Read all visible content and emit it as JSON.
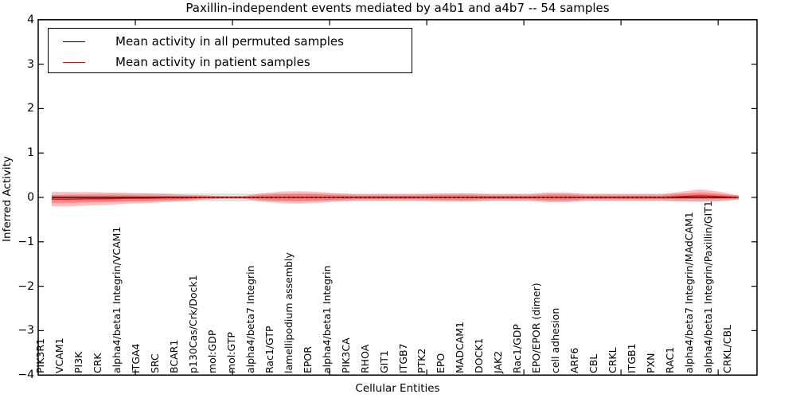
{
  "title": "Paxillin-independent events mediated by a4b1 and a4b7 -- 54 samples",
  "axes": {
    "ylabel": "Inferred Activity",
    "xlabel": "Cellular Entities",
    "ylim": [
      -4,
      4
    ],
    "ytick_values": [
      4,
      3,
      2,
      1,
      0,
      -1,
      -2,
      -3,
      -4
    ],
    "ytick_labels": [
      "4",
      "3",
      "2",
      "1",
      "0",
      "−1",
      "−2",
      "−3",
      "−4"
    ],
    "xlim": [
      0,
      37
    ],
    "xtick_values": [
      5,
      10,
      15,
      20,
      25,
      30,
      35
    ]
  },
  "legend": {
    "items": [
      {
        "label": "Mean activity in all permuted samples",
        "color": "#000000"
      },
      {
        "label": "Mean activity in patient samples",
        "color": "#ff0000"
      }
    ]
  },
  "chart_data": {
    "type": "line",
    "title": "Paxillin-independent events mediated by a4b1 and a4b7 -- 54 samples",
    "xlabel": "Cellular Entities",
    "ylabel": "Inferred Activity",
    "ylim": [
      -4,
      4
    ],
    "grid": false,
    "legend_position": "upper left",
    "categories": [
      "PIK3R1",
      "VCAM1",
      "PI3K",
      "CRK",
      "alpha4/beta1 Integrin/VCAM1",
      "ITGA4",
      "SRC",
      "BCAR1",
      "p130Cas/Crk/Dock1",
      "mol:GDP",
      "mol:GTP",
      "alpha4/beta7 Integrin",
      "Rac1/GTP",
      "lamellipodium assembly",
      "EPOR",
      "alpha4/beta1 Integrin",
      "PIK3CA",
      "RHOA",
      "GIT1",
      "ITGB7",
      "PTK2",
      "EPO",
      "MADCAM1",
      "DOCK1",
      "JAK2",
      "Rac1/GDP",
      "EPO/EPOR (dimer)",
      "cell adhesion",
      "ARF6",
      "CBL",
      "CRKL",
      "ITGB1",
      "PXN",
      "RAC1",
      "alpha4/beta7 Integrin/MAdCAM1",
      "alpha4/beta1 Integrin/Paxillin/GIT1",
      "CRKL/CBL"
    ],
    "series": [
      {
        "name": "Mean activity in all permuted samples",
        "color": "#000000",
        "style": "solid",
        "values": [
          0,
          0,
          0,
          0,
          0,
          0,
          0,
          0,
          0,
          0,
          0,
          0,
          0,
          0,
          0,
          0,
          0,
          0,
          0,
          0,
          0,
          0,
          0,
          0,
          0,
          0,
          0,
          0,
          0,
          0,
          0,
          0,
          0,
          0,
          0,
          0,
          0
        ]
      },
      {
        "name": "Mean activity in patient samples",
        "color": "#ff0000",
        "style": "solid",
        "values": [
          -0.04,
          -0.04,
          -0.03,
          -0.03,
          -0.02,
          -0.02,
          -0.01,
          -0.01,
          0,
          0,
          0,
          0,
          0,
          0,
          0,
          0,
          0,
          0,
          0,
          0,
          0,
          0,
          0,
          0,
          0,
          0,
          0,
          0,
          0,
          0,
          0,
          0,
          0,
          0.02,
          0.04,
          0.02,
          0
        ]
      }
    ],
    "zero_line": {
      "value": 0,
      "style": "dashed",
      "color": "#000000"
    },
    "bands": {
      "permuted_std": {
        "name": "std of permuted samples",
        "color": "rgba(130,130,130,0.22)",
        "center_values": [
          0,
          0,
          0,
          0,
          0,
          0,
          0,
          0,
          0,
          0,
          0,
          0,
          0,
          0,
          0,
          0,
          0,
          0,
          0,
          0,
          0,
          0,
          0,
          0,
          0,
          0,
          0,
          0,
          0,
          0,
          0,
          0,
          0,
          0,
          0,
          0,
          0
        ],
        "halfwidths": [
          0.05,
          0.07,
          0.08,
          0.09,
          0.09,
          0.09,
          0.09,
          0.09,
          0.09,
          0.09,
          0.09,
          0.09,
          0.09,
          0.09,
          0.09,
          0.09,
          0.09,
          0.09,
          0.09,
          0.09,
          0.09,
          0.09,
          0.09,
          0.09,
          0.09,
          0.09,
          0.09,
          0.09,
          0.09,
          0.09,
          0.09,
          0.09,
          0.09,
          0.09,
          0.08,
          0.07,
          0.05
        ]
      },
      "patient_std": {
        "name": "std of patient samples",
        "color": "rgba(255,0,0,0.26)",
        "inner_scale": 0.55,
        "halfwidths": [
          0.16,
          0.16,
          0.15,
          0.14,
          0.12,
          0.11,
          0.09,
          0.07,
          0.05,
          0.03,
          0.03,
          0.09,
          0.13,
          0.14,
          0.12,
          0.09,
          0.07,
          0.07,
          0.07,
          0.07,
          0.08,
          0.09,
          0.09,
          0.07,
          0.07,
          0.07,
          0.11,
          0.11,
          0.07,
          0.07,
          0.07,
          0.07,
          0.07,
          0.11,
          0.14,
          0.11,
          0.05
        ]
      }
    }
  }
}
